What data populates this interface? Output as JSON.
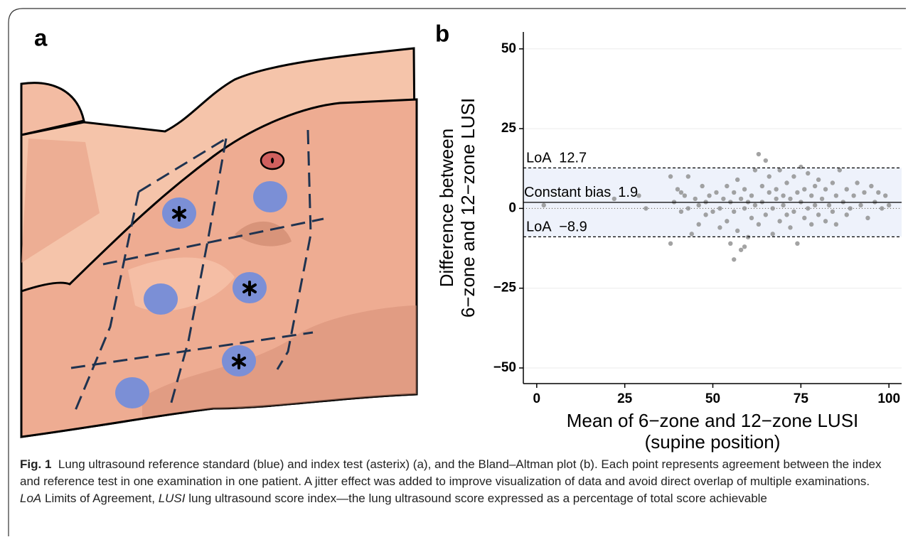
{
  "panel_labels": [
    "a",
    "b"
  ],
  "chart_data": {
    "type": "scatter",
    "ylabel": [
      "Difference between",
      "6−zone and 12−zone LUSI"
    ],
    "xlabel": [
      "Mean of 6−zone and 12−zone LUSI",
      "(supine position)"
    ],
    "xlim": [
      -3.8,
      103.6
    ],
    "ylim": [
      -54.9,
      55.3
    ],
    "xticks": [
      0,
      25,
      50,
      75,
      100
    ],
    "yticks": [
      50,
      25,
      0,
      {
        "value": -25,
        "label": "−25"
      },
      {
        "value": -50,
        "label": "−50"
      }
    ],
    "grid": true,
    "zero_line": true,
    "color": "#8c8c8c",
    "band_color": "#eef2fb",
    "reference_lines": [
      {
        "label": "LoA",
        "value": 12.7,
        "style": "dashed"
      },
      {
        "label": "Constant bias",
        "value": 1.9,
        "style": "solid"
      },
      {
        "label": "LoA",
        "value": -8.9,
        "value_label": "−8.9",
        "style": "dashed"
      }
    ],
    "x": [
      2,
      22,
      29,
      31,
      38,
      38,
      39,
      40,
      41,
      41,
      42,
      43,
      43,
      44,
      45,
      46,
      46,
      47,
      48,
      48,
      49,
      50,
      51,
      52,
      52,
      53,
      54,
      54,
      55,
      55,
      56,
      56,
      57,
      57,
      58,
      58,
      59,
      59,
      60,
      60,
      61,
      61,
      62,
      62,
      63,
      63,
      64,
      64,
      65,
      65,
      66,
      66,
      67,
      67,
      68,
      68,
      69,
      69,
      70,
      70,
      71,
      71,
      72,
      72,
      73,
      73,
      74,
      74,
      75,
      75,
      76,
      76,
      77,
      77,
      78,
      78,
      79,
      79,
      80,
      80,
      81,
      82,
      82,
      83,
      84,
      84,
      85,
      85,
      86,
      87,
      88,
      88,
      89,
      90,
      91,
      92,
      93,
      94,
      95,
      96,
      97,
      98,
      99,
      100,
      56,
      59
    ],
    "y": [
      1,
      3,
      4,
      0,
      10,
      -11,
      2,
      6,
      5,
      -1,
      4,
      0,
      10,
      -8,
      3,
      1,
      -5,
      7,
      2,
      -2,
      4,
      -1,
      5,
      0,
      -6,
      3,
      7,
      -4,
      2,
      -11,
      5,
      -1,
      9,
      -7,
      3,
      -13,
      6,
      0,
      2,
      -9,
      4,
      -3,
      12,
      1,
      17,
      -5,
      7,
      2,
      15,
      -2,
      5,
      10,
      0,
      -8,
      6,
      3,
      12,
      -4,
      4,
      1,
      8,
      -2,
      -6,
      3,
      10,
      -1,
      5,
      -11,
      13,
      2,
      6,
      -3,
      0,
      11,
      4,
      -5,
      7,
      1,
      9,
      -2,
      3,
      6,
      -4,
      1,
      8,
      -1,
      4,
      -5,
      12,
      2,
      6,
      -2,
      0,
      4,
      8,
      1,
      5,
      -3,
      7,
      2,
      5,
      0,
      4,
      1,
      -16,
      -12
    ]
  },
  "caption": {
    "label": "Fig. 1",
    "text1": "Lung ultrasound reference standard (blue) and index test (asterix) (a), and the Bland–Altman plot (b). Each point represents agreement between the index and reference test in one examination in one patient. A jitter effect was added to improve visualization of data and avoid direct overlap of multiple examinations.",
    "abbr1": "LoA",
    "text2": "Limits of Agreement,",
    "abbr2": "LUSI",
    "text3": "lung ultrasound score index—the lung ultrasound score expressed as a percentage of total score achievable"
  }
}
